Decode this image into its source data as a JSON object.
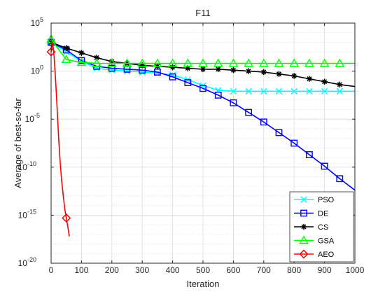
{
  "chart_data": {
    "type": "line",
    "title": "F11",
    "xlabel": "Iteration",
    "ylabel": "Average of best-so-far",
    "xlim": [
      0,
      1000
    ],
    "ylim_exp": [
      -20,
      5
    ],
    "y_scale": "log",
    "grid": true,
    "legend_position": "bottom-right",
    "x_ticks": [
      "0",
      "100",
      "200",
      "300",
      "400",
      "500",
      "600",
      "700",
      "800",
      "900",
      "1000"
    ],
    "y_ticks": [
      {
        "base": "10",
        "exp": "5",
        "value_exp": 5
      },
      {
        "base": "10",
        "exp": "0",
        "value_exp": 0
      },
      {
        "base": "10",
        "exp": "-5",
        "value_exp": -5
      },
      {
        "base": "10",
        "exp": "-10",
        "value_exp": -10
      },
      {
        "base": "10",
        "exp": "-15",
        "value_exp": -15
      },
      {
        "base": "10",
        "exp": "-20",
        "value_exp": -20
      }
    ],
    "series": [
      {
        "name": "PSO",
        "color": "#00ffff",
        "marker": "x",
        "x": [
          0,
          50,
          100,
          150,
          200,
          250,
          300,
          350,
          400,
          450,
          500,
          550,
          600,
          650,
          700,
          750,
          800,
          850,
          900,
          950,
          1000
        ],
        "y_exp": [
          3.0,
          2.0,
          1.0,
          0.3,
          0.1,
          0.0,
          -0.1,
          -0.2,
          -0.4,
          -0.9,
          -1.5,
          -2.0,
          -2.1,
          -2.1,
          -2.1,
          -2.1,
          -2.1,
          -2.1,
          -2.1,
          -2.1,
          -2.1
        ],
        "marker_x": [
          0,
          50,
          100,
          150,
          200,
          250,
          300,
          350,
          400,
          450,
          500,
          550,
          600,
          650,
          700,
          750,
          800,
          850,
          900,
          950
        ]
      },
      {
        "name": "DE",
        "color": "#0000ff",
        "marker": "square",
        "x": [
          0,
          50,
          100,
          150,
          200,
          250,
          300,
          350,
          400,
          450,
          500,
          550,
          600,
          650,
          700,
          750,
          800,
          850,
          900,
          950,
          1000
        ],
        "y_exp": [
          3.0,
          2.2,
          1.1,
          0.5,
          0.3,
          0.2,
          0.1,
          -0.1,
          -0.6,
          -1.2,
          -1.8,
          -2.5,
          -3.3,
          -4.3,
          -5.3,
          -6.4,
          -7.5,
          -8.7,
          -9.9,
          -11.2,
          -12.4
        ],
        "marker_x": [
          0,
          50,
          100,
          150,
          200,
          250,
          300,
          350,
          400,
          450,
          500,
          550,
          600,
          650,
          700,
          750,
          800,
          850,
          900,
          950
        ]
      },
      {
        "name": "CS",
        "color": "#000000",
        "marker": "asterisk",
        "x": [
          0,
          50,
          100,
          150,
          200,
          250,
          300,
          350,
          400,
          450,
          500,
          550,
          600,
          650,
          700,
          750,
          800,
          850,
          900,
          950,
          1000
        ],
        "y_exp": [
          3.0,
          2.4,
          1.9,
          1.4,
          1.0,
          0.8,
          0.6,
          0.5,
          0.4,
          0.3,
          0.2,
          0.2,
          0.1,
          0.0,
          -0.1,
          -0.3,
          -0.5,
          -0.8,
          -1.1,
          -1.4,
          -1.6
        ],
        "marker_x": [
          0,
          50,
          100,
          150,
          200,
          250,
          300,
          350,
          400,
          450,
          500,
          550,
          600,
          650,
          700,
          750,
          800,
          850,
          900,
          950
        ]
      },
      {
        "name": "GSA",
        "color": "#00ff00",
        "marker": "triangle",
        "x": [
          0,
          50,
          100,
          150,
          200,
          250,
          300,
          350,
          400,
          450,
          500,
          550,
          600,
          650,
          700,
          750,
          800,
          850,
          900,
          950,
          1000
        ],
        "y_exp": [
          3.3,
          1.2,
          0.9,
          0.8,
          0.8,
          0.8,
          0.8,
          0.8,
          0.8,
          0.8,
          0.8,
          0.8,
          0.8,
          0.8,
          0.8,
          0.8,
          0.8,
          0.8,
          0.8,
          0.8,
          0.8
        ],
        "marker_x": [
          0,
          50,
          100,
          150,
          200,
          250,
          300,
          350,
          400,
          450,
          500,
          550,
          600,
          650,
          700,
          750,
          800,
          850,
          900,
          950
        ]
      },
      {
        "name": "AEO",
        "color": "#ff0000",
        "marker": "diamond",
        "x": [
          0,
          5,
          10,
          15,
          20,
          25,
          30,
          35,
          40,
          45,
          50,
          55,
          60
        ],
        "y_exp": [
          2.0,
          3.0,
          1.5,
          -1.0,
          -4.0,
          -7.0,
          -9.5,
          -11.5,
          -13.0,
          -14.3,
          -15.3,
          -16.2,
          -17.2
        ],
        "marker_x": [
          0,
          50
        ]
      }
    ]
  }
}
